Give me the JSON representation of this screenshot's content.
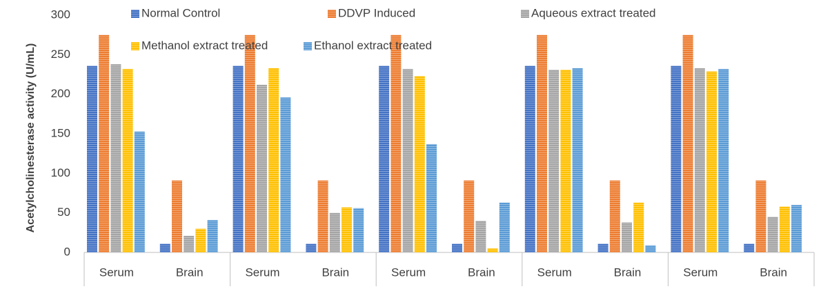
{
  "chart_data": {
    "type": "bar",
    "y_label": "Acetylcholinesterase activity (U/mL)",
    "categories": [
      "Serum",
      "Brain",
      "Serum",
      "Brain",
      "Serum",
      "Brain",
      "Serum",
      "Brain",
      "Serum",
      "Brain"
    ],
    "series": [
      {
        "name": "Normal Control",
        "color": "#4472c4",
        "values": [
          236,
          11,
          236,
          11,
          236,
          11,
          236,
          11,
          236,
          11
        ]
      },
      {
        "name": "DDVP Induced",
        "color": "#ed7d31",
        "values": [
          275,
          91,
          275,
          91,
          275,
          91,
          275,
          91,
          275,
          91
        ]
      },
      {
        "name": "Aqueous extract treated",
        "color": "#a5a5a5",
        "values": [
          238,
          21,
          212,
          50,
          232,
          40,
          231,
          38,
          233,
          45
        ]
      },
      {
        "name": "Methanol extract treated",
        "color": "#ffc000",
        "values": [
          232,
          30,
          233,
          57,
          223,
          5,
          231,
          63,
          229,
          58
        ]
      },
      {
        "name": "Ethanol extract treated",
        "color": "#5b9bd5",
        "values": [
          153,
          41,
          196,
          56,
          137,
          63,
          233,
          9,
          232,
          60
        ]
      }
    ],
    "ylim": [
      0,
      300
    ],
    "yticks": [
      0,
      50,
      100,
      150,
      200,
      250,
      300
    ],
    "grid": false
  }
}
